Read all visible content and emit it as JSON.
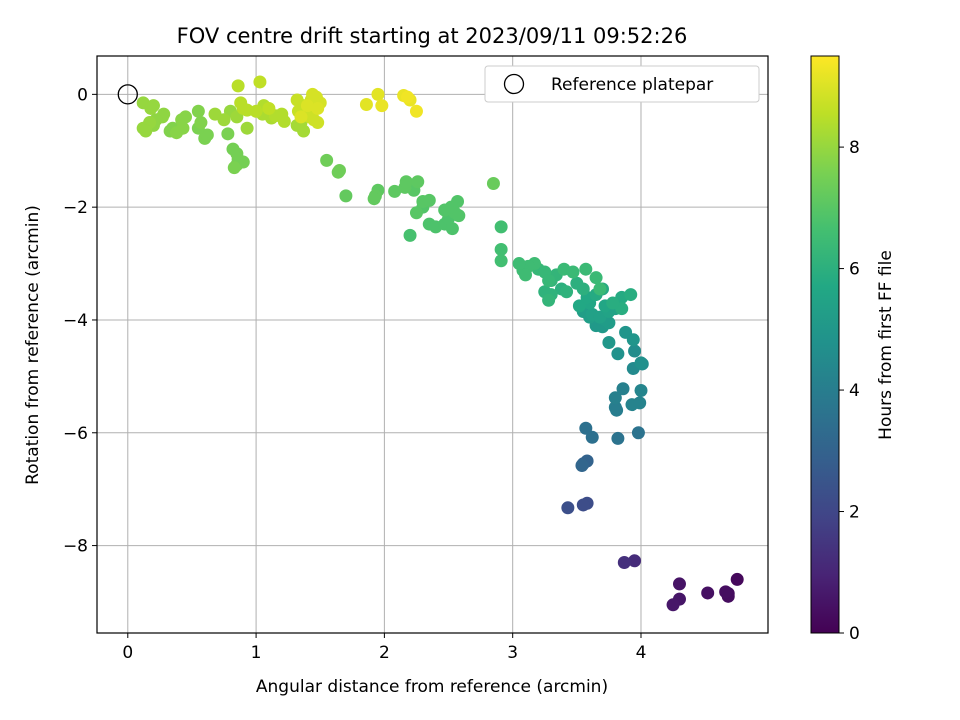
{
  "chart_data": {
    "type": "scatter",
    "title": "FOV centre drift starting at 2023/09/11 09:52:26",
    "xlabel": "Angular distance from reference (arcmin)",
    "ylabel": "Rotation from reference (arcmin)",
    "xlim": [
      -0.24,
      4.99
    ],
    "ylim": [
      -9.55,
      0.68
    ],
    "xticks": [
      0,
      1,
      2,
      3,
      4
    ],
    "yticks": [
      0,
      -2,
      -4,
      -6,
      -8
    ],
    "grid": true,
    "legend": {
      "placement": "top-right",
      "entries": [
        "Reference platepar"
      ]
    },
    "reference_point": {
      "x": 0,
      "y": 0
    },
    "colorbar": {
      "label": "Hours from first FF file",
      "range": [
        0,
        9.5
      ],
      "ticks": [
        0,
        2,
        4,
        6,
        8
      ],
      "colormap": "viridis"
    },
    "points": [
      [
        4.75,
        -8.6,
        0.2
      ],
      [
        4.68,
        -8.85,
        0.3
      ],
      [
        4.68,
        -8.9,
        0.3
      ],
      [
        4.66,
        -8.82,
        0.35
      ],
      [
        4.52,
        -8.84,
        0.4
      ],
      [
        4.3,
        -8.68,
        0.5
      ],
      [
        4.3,
        -8.95,
        0.55
      ],
      [
        4.25,
        -9.05,
        0.6
      ],
      [
        3.95,
        -8.27,
        1.2
      ],
      [
        3.87,
        -8.3,
        1.3
      ],
      [
        3.58,
        -7.25,
        2.2
      ],
      [
        3.55,
        -7.28,
        2.2
      ],
      [
        3.43,
        -7.33,
        2.3
      ],
      [
        3.58,
        -6.5,
        3.0
      ],
      [
        3.55,
        -6.55,
        3.0
      ],
      [
        3.54,
        -6.58,
        3.1
      ],
      [
        3.57,
        -5.92,
        3.5
      ],
      [
        3.62,
        -6.08,
        3.5
      ],
      [
        3.82,
        -6.1,
        3.6
      ],
      [
        3.98,
        -6.0,
        3.6
      ],
      [
        3.8,
        -5.55,
        4.0
      ],
      [
        3.81,
        -5.6,
        4.0
      ],
      [
        3.8,
        -5.38,
        4.1
      ],
      [
        3.86,
        -5.22,
        4.1
      ],
      [
        3.93,
        -5.5,
        4.2
      ],
      [
        3.99,
        -5.47,
        4.2
      ],
      [
        4.0,
        -5.25,
        4.3
      ],
      [
        3.94,
        -4.86,
        4.5
      ],
      [
        3.95,
        -4.55,
        4.6
      ],
      [
        4.01,
        -4.78,
        4.6
      ],
      [
        4.0,
        -4.76,
        4.7
      ],
      [
        3.82,
        -4.6,
        4.8
      ],
      [
        3.88,
        -4.22,
        4.9
      ],
      [
        3.94,
        -4.35,
        4.9
      ],
      [
        3.75,
        -4.4,
        5.0
      ],
      [
        3.65,
        -4.1,
        5.1
      ],
      [
        3.7,
        -4.12,
        5.1
      ],
      [
        3.75,
        -4.05,
        5.2
      ],
      [
        3.72,
        -4.0,
        5.2
      ],
      [
        3.6,
        -3.95,
        5.3
      ],
      [
        3.55,
        -3.85,
        5.3
      ],
      [
        3.62,
        -3.9,
        5.4
      ],
      [
        3.68,
        -3.95,
        5.4
      ],
      [
        3.75,
        -3.85,
        5.5
      ],
      [
        3.8,
        -3.8,
        5.5
      ],
      [
        3.72,
        -3.75,
        5.6
      ],
      [
        3.6,
        -3.7,
        5.6
      ],
      [
        3.52,
        -3.75,
        5.7
      ],
      [
        3.58,
        -3.6,
        5.7
      ],
      [
        3.65,
        -3.55,
        5.8
      ],
      [
        3.7,
        -3.45,
        5.8
      ],
      [
        3.85,
        -3.6,
        5.8
      ],
      [
        3.92,
        -3.55,
        5.9
      ],
      [
        3.85,
        -3.8,
        5.9
      ],
      [
        3.78,
        -3.7,
        5.9
      ],
      [
        3.5,
        -3.35,
        6.0
      ],
      [
        3.55,
        -3.45,
        6.0
      ],
      [
        3.38,
        -3.45,
        6.0
      ],
      [
        3.42,
        -3.5,
        6.1
      ],
      [
        3.3,
        -3.55,
        6.1
      ],
      [
        3.25,
        -3.5,
        6.1
      ],
      [
        3.28,
        -3.65,
        6.2
      ],
      [
        3.34,
        -3.2,
        6.2
      ],
      [
        3.3,
        -3.3,
        6.2
      ],
      [
        3.2,
        -3.1,
        6.3
      ],
      [
        3.25,
        -3.15,
        6.3
      ],
      [
        3.28,
        -3.3,
        6.3
      ],
      [
        3.4,
        -3.1,
        6.4
      ],
      [
        3.47,
        -3.15,
        6.4
      ],
      [
        3.57,
        -3.1,
        6.4
      ],
      [
        3.65,
        -3.25,
        6.4
      ],
      [
        3.68,
        -3.45,
        6.4
      ],
      [
        3.17,
        -3.0,
        6.5
      ],
      [
        3.12,
        -3.05,
        6.5
      ],
      [
        3.08,
        -3.12,
        6.5
      ],
      [
        3.1,
        -3.2,
        6.5
      ],
      [
        3.05,
        -3.0,
        6.5
      ],
      [
        2.91,
        -2.35,
        6.6
      ],
      [
        2.91,
        -2.75,
        6.6
      ],
      [
        2.91,
        -2.95,
        6.6
      ],
      [
        2.2,
        -2.5,
        6.7
      ],
      [
        2.35,
        -2.3,
        6.8
      ],
      [
        2.4,
        -2.35,
        6.8
      ],
      [
        2.47,
        -2.3,
        6.8
      ],
      [
        2.53,
        -2.38,
        6.8
      ],
      [
        2.5,
        -2.2,
        6.8
      ],
      [
        2.55,
        -2.1,
        6.9
      ],
      [
        2.58,
        -2.15,
        6.9
      ],
      [
        2.47,
        -2.05,
        6.9
      ],
      [
        2.52,
        -2.0,
        6.9
      ],
      [
        2.57,
        -1.9,
        6.9
      ],
      [
        2.3,
        -2.0,
        6.9
      ],
      [
        2.25,
        -2.1,
        7.0
      ],
      [
        2.3,
        -1.9,
        7.0
      ],
      [
        2.35,
        -1.88,
        7.0
      ],
      [
        2.2,
        -1.6,
        7.0
      ],
      [
        2.23,
        -1.7,
        7.0
      ],
      [
        2.16,
        -1.65,
        7.1
      ],
      [
        2.17,
        -1.55,
        7.1
      ],
      [
        2.26,
        -1.55,
        7.1
      ],
      [
        2.08,
        -1.72,
        7.1
      ],
      [
        1.95,
        -1.7,
        7.1
      ],
      [
        1.93,
        -1.8,
        7.2
      ],
      [
        1.92,
        -1.85,
        7.2
      ],
      [
        1.7,
        -1.8,
        7.2
      ],
      [
        2.85,
        -1.58,
        7.3
      ],
      [
        1.55,
        -1.17,
        7.4
      ],
      [
        1.65,
        -1.35,
        7.4
      ],
      [
        1.64,
        -1.38,
        7.4
      ],
      [
        0.82,
        -0.97,
        7.5
      ],
      [
        0.85,
        -1.05,
        7.5
      ],
      [
        0.9,
        -1.2,
        7.5
      ],
      [
        0.86,
        -1.15,
        7.5
      ],
      [
        0.85,
        -1.25,
        7.5
      ],
      [
        0.83,
        -1.3,
        7.6
      ],
      [
        0.78,
        -0.7,
        7.6
      ],
      [
        0.6,
        -0.78,
        7.6
      ],
      [
        0.62,
        -0.72,
        7.6
      ],
      [
        0.55,
        -0.6,
        7.6
      ],
      [
        0.57,
        -0.5,
        7.7
      ],
      [
        0.55,
        -0.3,
        7.7
      ],
      [
        0.35,
        -0.6,
        7.7
      ],
      [
        0.33,
        -0.65,
        7.7
      ],
      [
        0.38,
        -0.68,
        7.8
      ],
      [
        0.43,
        -0.6,
        7.8
      ],
      [
        0.42,
        -0.45,
        7.8
      ],
      [
        0.45,
        -0.4,
        7.8
      ],
      [
        0.28,
        -0.35,
        7.9
      ],
      [
        0.27,
        -0.4,
        7.9
      ],
      [
        0.22,
        -0.45,
        7.9
      ],
      [
        0.2,
        -0.55,
        7.9
      ],
      [
        0.17,
        -0.5,
        8.0
      ],
      [
        0.12,
        -0.6,
        8.0
      ],
      [
        0.14,
        -0.65,
        8.0
      ],
      [
        0.12,
        -0.15,
        8.0
      ],
      [
        0.18,
        -0.25,
        8.0
      ],
      [
        0.2,
        -0.2,
        8.0
      ],
      [
        0.8,
        -0.3,
        8.0
      ],
      [
        0.85,
        -0.4,
        8.1
      ],
      [
        0.93,
        -0.6,
        8.1
      ],
      [
        0.68,
        -0.35,
        8.1
      ],
      [
        0.75,
        -0.45,
        8.1
      ],
      [
        1.32,
        -0.55,
        8.2
      ],
      [
        1.35,
        -0.5,
        8.2
      ],
      [
        1.37,
        -0.65,
        8.2
      ],
      [
        1.05,
        -0.35,
        8.3
      ],
      [
        1.1,
        -0.3,
        8.3
      ],
      [
        1.12,
        -0.42,
        8.3
      ],
      [
        1.15,
        -0.38,
        8.4
      ],
      [
        1.2,
        -0.35,
        8.4
      ],
      [
        1.22,
        -0.48,
        8.4
      ],
      [
        1.06,
        -0.2,
        8.4
      ],
      [
        0.86,
        0.15,
        8.5
      ],
      [
        0.88,
        -0.15,
        8.5
      ],
      [
        0.9,
        -0.25,
        8.5
      ],
      [
        0.93,
        -0.28,
        8.5
      ],
      [
        1.0,
        -0.3,
        8.5
      ],
      [
        1.03,
        0.22,
        8.6
      ],
      [
        1.1,
        -0.25,
        8.6
      ],
      [
        1.32,
        -0.1,
        8.7
      ],
      [
        1.37,
        -0.2,
        8.7
      ],
      [
        1.33,
        -0.3,
        8.7
      ],
      [
        1.38,
        -0.35,
        8.7
      ],
      [
        1.42,
        -0.4,
        8.8
      ],
      [
        1.45,
        -0.45,
        8.8
      ],
      [
        1.48,
        -0.5,
        8.8
      ],
      [
        1.43,
        -0.1,
        8.8
      ],
      [
        1.47,
        -0.05,
        8.9
      ],
      [
        1.5,
        -0.15,
        8.9
      ],
      [
        1.44,
        0.0,
        8.9
      ],
      [
        1.4,
        -0.2,
        9.0
      ],
      [
        1.48,
        -0.25,
        9.0
      ],
      [
        1.35,
        -0.4,
        9.0
      ],
      [
        1.86,
        -0.18,
        9.1
      ],
      [
        1.95,
        0.0,
        9.1
      ],
      [
        1.98,
        -0.2,
        9.2
      ],
      [
        2.15,
        -0.02,
        9.2
      ],
      [
        2.2,
        -0.1,
        9.2
      ],
      [
        2.18,
        -0.05,
        9.3
      ],
      [
        2.25,
        -0.3,
        9.3
      ]
    ]
  }
}
